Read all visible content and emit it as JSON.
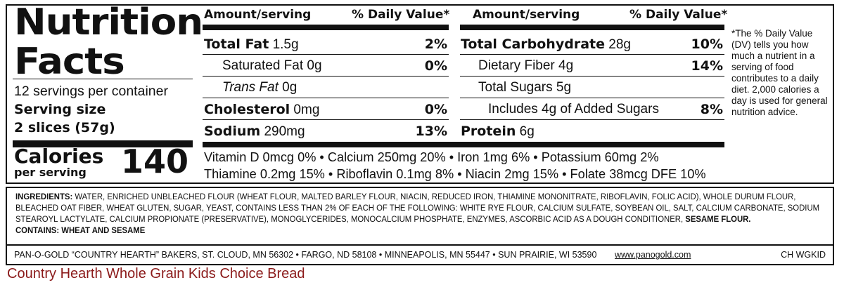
{
  "label": {
    "title_line1": "Nutrition",
    "title_line2": "Facts",
    "servings_per_container": "12 servings per container",
    "serving_size_label": "Serving size",
    "serving_size_value": "2 slices (57g)",
    "calories_label": "Calories",
    "calories_sublabel": "per serving",
    "calories_value": "140"
  },
  "columns": {
    "amount_header": "Amount/serving",
    "dv_header": "% Daily Value*"
  },
  "left_rows": [
    {
      "name": "Total Fat",
      "amount": "1.5g",
      "dv": "2%"
    },
    {
      "name": "Saturated Fat",
      "amount": "0g",
      "dv": "0%"
    },
    {
      "name": "Trans Fat",
      "amount": "0g",
      "dv": ""
    },
    {
      "name": "Cholesterol",
      "amount": "0mg",
      "dv": "0%"
    },
    {
      "name": "Sodium",
      "amount": "290mg",
      "dv": "13%"
    }
  ],
  "right_rows": [
    {
      "name": "Total Carbohydrate",
      "amount": "28g",
      "dv": "10%"
    },
    {
      "name": "Dietary Fiber",
      "amount": "4g",
      "dv": "14%"
    },
    {
      "name": "Total Sugars",
      "amount": "5g",
      "dv": ""
    },
    {
      "name": "Includes 4g of Added Sugars",
      "amount": "",
      "dv": "8%"
    },
    {
      "name": "Protein",
      "amount": "6g",
      "dv": ""
    }
  ],
  "vitamins": {
    "line1": "Vitamin D 0mcg 0%  •  Calcium 250mg 20%  •  Iron 1mg 6%  •  Potassium 60mg 2%",
    "line2": "Thiamine 0.2mg 15%  •  Riboflavin 0.1mg 8% • Niacin 2mg 15% • Folate 38mcg DFE 10%"
  },
  "footnote": "*The % Daily Value (DV) tells you how much a nutrient in a serving of food contributes to a daily diet. 2,000 calories a day is used for general nutrition advice.",
  "ingredients": {
    "label": "INGREDIENTS:",
    "text": "WATER, ENRICHED UNBLEACHED FLOUR (WHEAT FLOUR, MALTED BARLEY FLOUR, NIACIN, REDUCED IRON, THIAMINE MONONITRATE, RIBOFLAVIN, FOLIC ACID), WHOLE DURUM FLOUR, BLEACHED OAT FIBER, WHEAT GLUTEN, SUGAR, YEAST, CONTAINS LESS THAN 2% OF EACH OF THE FOLLOWING: WHITE RYE FLOUR, CALCIUM SULFATE, SOYBEAN OIL, SALT, CALCIUM CARBONATE, SODIUM STEAROYL LACTYLATE, CALCIUM PROPIONATE (PRESERVATIVE), MONOGLYCERIDES, MONOCALCIUM PHOSPHATE, ENZYMES, ASCORBIC ACID AS A DOUGH CONDITIONER,",
    "sesame": "SESAME FLOUR.",
    "contains": "CONTAINS: WHEAT AND SESAME"
  },
  "footer": {
    "company": "PAN-O-GOLD “COUNTRY HEARTH” BAKERS,  ST. CLOUD, MN  56302  •  FARGO, ND  58108 • MINNEAPOLIS, MN  55447 • SUN PRAIRIE, WI  53590",
    "website": "www.panogold.com",
    "code": "CH WGKID"
  },
  "caption": "Country Hearth Whole Grain Kids Choice Bread"
}
